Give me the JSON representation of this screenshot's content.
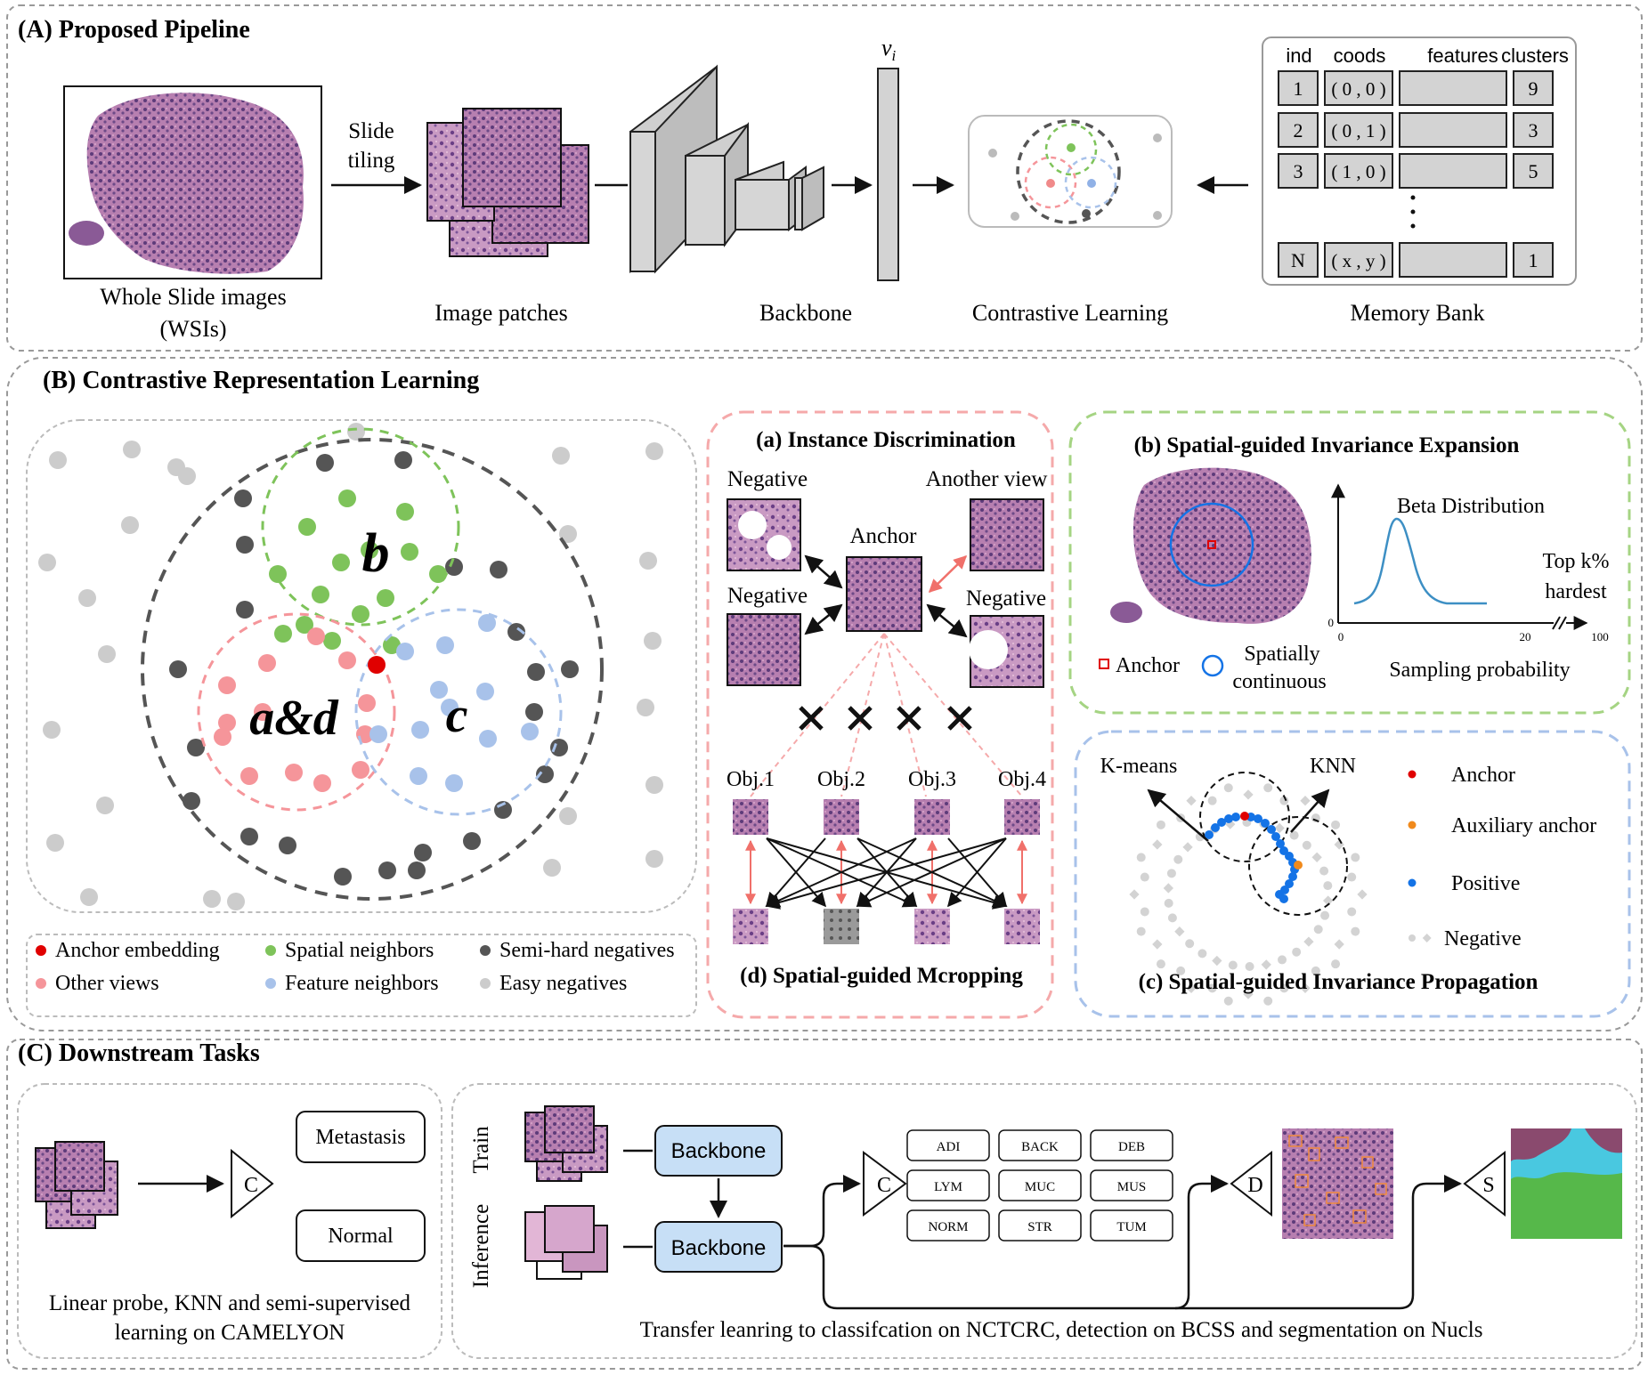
{
  "colors": {
    "anchor": "#e00000",
    "spatial": "#7ec35a",
    "feature": "#a8c2ea",
    "other_views": "#f5959a",
    "semihard": "#555555",
    "easy": "#cccccc",
    "positive": "#1473e6",
    "auxiliary": "#f08a1c",
    "backbone_fill": "#c7dff6",
    "tissue": "#8a5a96"
  },
  "panelA": {
    "title": "(A) Proposed Pipeline",
    "wsi_label_1": "Whole Slide images",
    "wsi_label_2": "(WSIs)",
    "slide_tiling_1": "Slide",
    "slide_tiling_2": "tiling",
    "patches_label": "Image patches",
    "backbone_label": "Backbone",
    "vector_label": "v",
    "vector_sub": "i",
    "contrastive_label": "Contrastive Learning",
    "memory_label": "Memory Bank",
    "bank_headers": [
      "ind",
      "coods",
      "features",
      "clusters"
    ],
    "bank_rows": [
      {
        "ind": "1",
        "coords": "( 0 , 0 )",
        "cluster": "9"
      },
      {
        "ind": "2",
        "coords": "( 0 , 1 )",
        "cluster": "3"
      },
      {
        "ind": "3",
        "coords": "( 1 , 0 )",
        "cluster": "5"
      },
      {
        "ind": "N",
        "coords": "( x , y )",
        "cluster": "1"
      }
    ]
  },
  "panelB": {
    "title": "(B) Contrastive Representation Learning",
    "region_b": "b",
    "region_ad": "a&d",
    "region_c": "c",
    "legend": [
      "Anchor embedding",
      "Spatial neighbors",
      "Semi-hard negatives",
      "Other views",
      "Feature neighbors",
      "Easy negatives"
    ],
    "a": {
      "title": "(a) Instance Discrimination",
      "negative": "Negative",
      "another_view": "Another view",
      "anchor": "Anchor",
      "objs": [
        "Obj.1",
        "Obj.2",
        "Obj.3",
        "Obj.4"
      ]
    },
    "d": {
      "title": "(d) Spatial-guided Mcropping"
    },
    "b_panel": {
      "title": "(b) Spatial-guided Invariance Expansion",
      "beta": "Beta Distribution",
      "topk_1": "Top k%",
      "topk_2": "hardest",
      "xaxis_label": "Sampling probability",
      "ticks": [
        "0",
        "20",
        "100"
      ],
      "y0": "0",
      "anchor_legend": "Anchor",
      "spatial_legend_1": "Spatially",
      "spatial_legend_2": "continuous"
    },
    "c_panel": {
      "title": "(c) Spatial-guided Invariance Propagation",
      "kmeans": "K-means",
      "knn": "KNN",
      "legend": [
        "Anchor",
        "Auxiliary anchor",
        "Positive",
        "Negative"
      ]
    }
  },
  "panelC": {
    "title": "(C) Downstream Tasks",
    "metastasis": "Metastasis",
    "normal": "Normal",
    "classifier_c": "C",
    "left_caption_1": "Linear probe, KNN and semi-supervised",
    "left_caption_2": "learning on CAMELYON",
    "train": "Train",
    "inference": "Inference",
    "backbone": "Backbone",
    "classes": [
      "ADI",
      "BACK",
      "DEB",
      "LYM",
      "MUC",
      "MUS",
      "NORM",
      "STR",
      "TUM"
    ],
    "head_c": "C",
    "head_d": "D",
    "head_s": "S",
    "right_caption": "Transfer leanring to classifcation on  NCTCRC, detection on BCSS and segmentation on Nucls"
  }
}
